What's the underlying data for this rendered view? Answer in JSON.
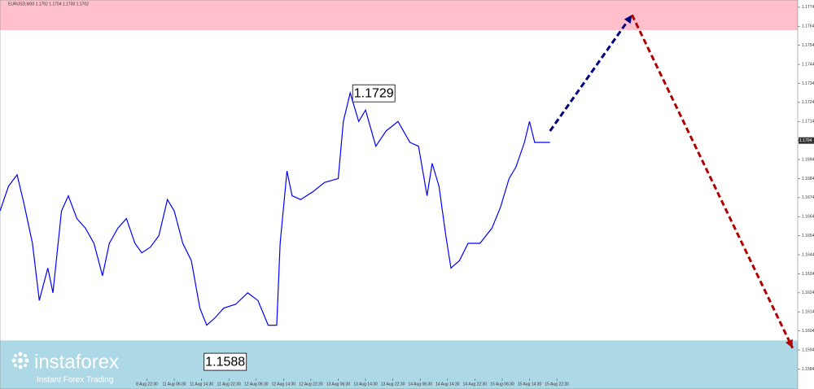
{
  "chart_data": {
    "type": "line",
    "title": "EURUSD,M30  1.1702 1.1704 1.1700 1.1702",
    "x": [
      0,
      5,
      10,
      14,
      19,
      23,
      28,
      31,
      36,
      40,
      45,
      50,
      55,
      60,
      64,
      69,
      74,
      79,
      83,
      88,
      93,
      98,
      102,
      107,
      112,
      117,
      121,
      126,
      131,
      138,
      145,
      151,
      157,
      162,
      164,
      168,
      171,
      176,
      183,
      190,
      198,
      201,
      205,
      210,
      214,
      220,
      226,
      233,
      240,
      245,
      250,
      253,
      257,
      261,
      264,
      269,
      274,
      281,
      288,
      293,
      298,
      302,
      307,
      310,
      313,
      319,
      322
    ],
    "series": [
      {
        "name": "EURUSD",
        "color": "#0000ff",
        "values": [
          1.1667,
          1.168,
          1.1686,
          1.1671,
          1.165,
          1.162,
          1.1637,
          1.1624,
          1.1667,
          1.1675,
          1.1663,
          1.1658,
          1.165,
          1.1633,
          1.165,
          1.1658,
          1.1663,
          1.165,
          1.1645,
          1.1648,
          1.1654,
          1.1673,
          1.1667,
          1.165,
          1.1641,
          1.1616,
          1.1607,
          1.1611,
          1.1616,
          1.1618,
          1.1624,
          1.162,
          1.1607,
          1.1607,
          1.165,
          1.1688,
          1.1675,
          1.1673,
          1.1677,
          1.1682,
          1.1684,
          1.1714,
          1.1729,
          1.1714,
          1.172,
          1.1701,
          1.1709,
          1.1714,
          1.1703,
          1.1701,
          1.1675,
          1.1692,
          1.168,
          1.1654,
          1.1637,
          1.1641,
          1.165,
          1.165,
          1.1658,
          1.1669,
          1.1684,
          1.169,
          1.1703,
          1.1714,
          1.1703,
          1.1703,
          1.1703
        ]
      }
    ],
    "xlim": [
      0,
      467
    ],
    "ylim": [
      1.15735,
      1.17778
    ],
    "yticks": [
      1.1774,
      1.1764,
      1.1754,
      1.1744,
      1.1734,
      1.1724,
      1.1714,
      1.1704,
      1.1694,
      1.1684,
      1.1674,
      1.1664,
      1.1654,
      1.1644,
      1.1634,
      1.1624,
      1.1614,
      1.1604,
      1.1594,
      1.1584
    ],
    "xticks": [
      {
        "value": 86,
        "label": "8 Aug 22:30"
      },
      {
        "value": 102,
        "label": "11 Aug 06:30"
      },
      {
        "value": 118,
        "label": "11 Aug 14:30"
      },
      {
        "value": 134,
        "label": "11 Aug 22:30"
      },
      {
        "value": 150,
        "label": "12 Aug 06:30"
      },
      {
        "value": 166,
        "label": "12 Aug 14:30"
      },
      {
        "value": 182,
        "label": "12 Aug 22:30"
      },
      {
        "value": 198,
        "label": "13 Aug 06:30"
      },
      {
        "value": 214,
        "label": "13 Aug 14:30"
      },
      {
        "value": 230,
        "label": "13 Aug 22:30"
      },
      {
        "value": 246,
        "label": "14 Aug 06:30"
      },
      {
        "value": 262,
        "label": "14 Aug 14:30"
      },
      {
        "value": 278,
        "label": "14 Aug 22:30"
      },
      {
        "value": 294,
        "label": "15 Aug 06:30"
      },
      {
        "value": 310,
        "label": "15 Aug 14:30"
      },
      {
        "value": 326,
        "label": "15 Aug 22:30"
      }
    ],
    "last_price": 1.1704,
    "zones": [
      {
        "from": 1.1762,
        "to": 1.17778,
        "color": "#ffc0cb"
      },
      {
        "from": 1.15735,
        "to": 1.1599,
        "color": "#add8e6"
      }
    ],
    "annotations": [
      {
        "x": 205,
        "value": 1.1729
      },
      {
        "x": 119,
        "value": 1.1588
      }
    ],
    "arrows": [
      {
        "x": [
          322,
          370
        ],
        "values": [
          1.1709,
          1.177
        ],
        "color": "#000080"
      },
      {
        "x": [
          370,
          464
        ],
        "values": [
          1.177,
          1.1595
        ],
        "color": "#b00000"
      }
    ]
  },
  "branding": {
    "name": "instaforex",
    "tagline": "Instant Forex Trading"
  }
}
